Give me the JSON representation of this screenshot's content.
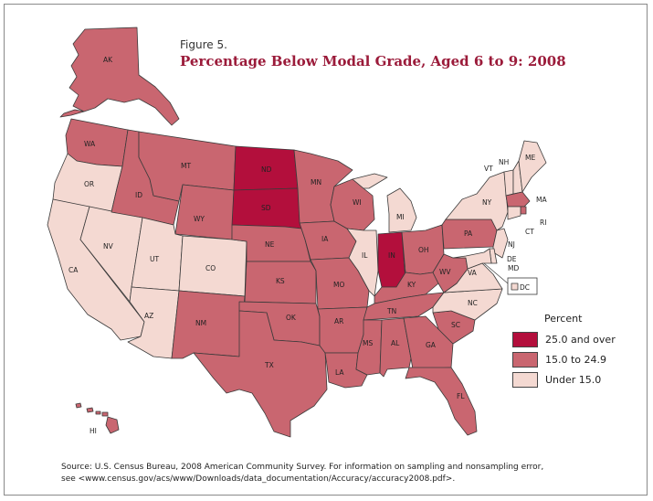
{
  "figure": {
    "label": "Figure 5.",
    "title": "Percentage Below Modal Grade, Aged 6 to 9: 2008"
  },
  "colors": {
    "high": "#b30f3c",
    "mid": "#c96670",
    "low": "#f4d9d2"
  },
  "legend": {
    "title": "Percent",
    "items": [
      {
        "label": "25.0 and over",
        "class": "high"
      },
      {
        "label": "15.0 to 24.9",
        "class": "mid"
      },
      {
        "label": "Under 15.0",
        "class": "low"
      }
    ]
  },
  "states": [
    {
      "abbr": "AK",
      "class": "mid"
    },
    {
      "abbr": "HI",
      "class": "mid"
    },
    {
      "abbr": "WA",
      "class": "mid"
    },
    {
      "abbr": "OR",
      "class": "low"
    },
    {
      "abbr": "CA",
      "class": "low"
    },
    {
      "abbr": "NV",
      "class": "low"
    },
    {
      "abbr": "ID",
      "class": "mid"
    },
    {
      "abbr": "MT",
      "class": "mid"
    },
    {
      "abbr": "WY",
      "class": "mid"
    },
    {
      "abbr": "UT",
      "class": "low"
    },
    {
      "abbr": "CO",
      "class": "low"
    },
    {
      "abbr": "AZ",
      "class": "low"
    },
    {
      "abbr": "NM",
      "class": "mid"
    },
    {
      "abbr": "ND",
      "class": "high"
    },
    {
      "abbr": "SD",
      "class": "high"
    },
    {
      "abbr": "NE",
      "class": "mid"
    },
    {
      "abbr": "KS",
      "class": "mid"
    },
    {
      "abbr": "OK",
      "class": "mid"
    },
    {
      "abbr": "TX",
      "class": "mid"
    },
    {
      "abbr": "MN",
      "class": "mid"
    },
    {
      "abbr": "IA",
      "class": "mid"
    },
    {
      "abbr": "MO",
      "class": "mid"
    },
    {
      "abbr": "AR",
      "class": "mid"
    },
    {
      "abbr": "LA",
      "class": "mid"
    },
    {
      "abbr": "WI",
      "class": "mid"
    },
    {
      "abbr": "IL",
      "class": "low"
    },
    {
      "abbr": "MI",
      "class": "low"
    },
    {
      "abbr": "IN",
      "class": "high"
    },
    {
      "abbr": "OH",
      "class": "mid"
    },
    {
      "abbr": "KY",
      "class": "mid"
    },
    {
      "abbr": "TN",
      "class": "mid"
    },
    {
      "abbr": "MS",
      "class": "mid"
    },
    {
      "abbr": "AL",
      "class": "mid"
    },
    {
      "abbr": "GA",
      "class": "mid"
    },
    {
      "abbr": "FL",
      "class": "mid"
    },
    {
      "abbr": "SC",
      "class": "mid"
    },
    {
      "abbr": "NC",
      "class": "low"
    },
    {
      "abbr": "VA",
      "class": "low"
    },
    {
      "abbr": "WV",
      "class": "mid"
    },
    {
      "abbr": "PA",
      "class": "mid"
    },
    {
      "abbr": "NY",
      "class": "low"
    },
    {
      "abbr": "VT",
      "class": "low"
    },
    {
      "abbr": "NH",
      "class": "low"
    },
    {
      "abbr": "ME",
      "class": "low"
    },
    {
      "abbr": "MA",
      "class": "mid"
    },
    {
      "abbr": "RI",
      "class": "mid"
    },
    {
      "abbr": "CT",
      "class": "low"
    },
    {
      "abbr": "NJ",
      "class": "low"
    },
    {
      "abbr": "DE",
      "class": "low"
    },
    {
      "abbr": "MD",
      "class": "low"
    },
    {
      "abbr": "DC",
      "class": "low"
    }
  ],
  "source": {
    "line1": "Source: U.S. Census Bureau, 2008 American Community Survey. For information on sampling and nonsampling error,",
    "line2": "see <www.census.gov/acs/www/Downloads/data_documentation/Accuracy/accuracy2008.pdf>."
  }
}
